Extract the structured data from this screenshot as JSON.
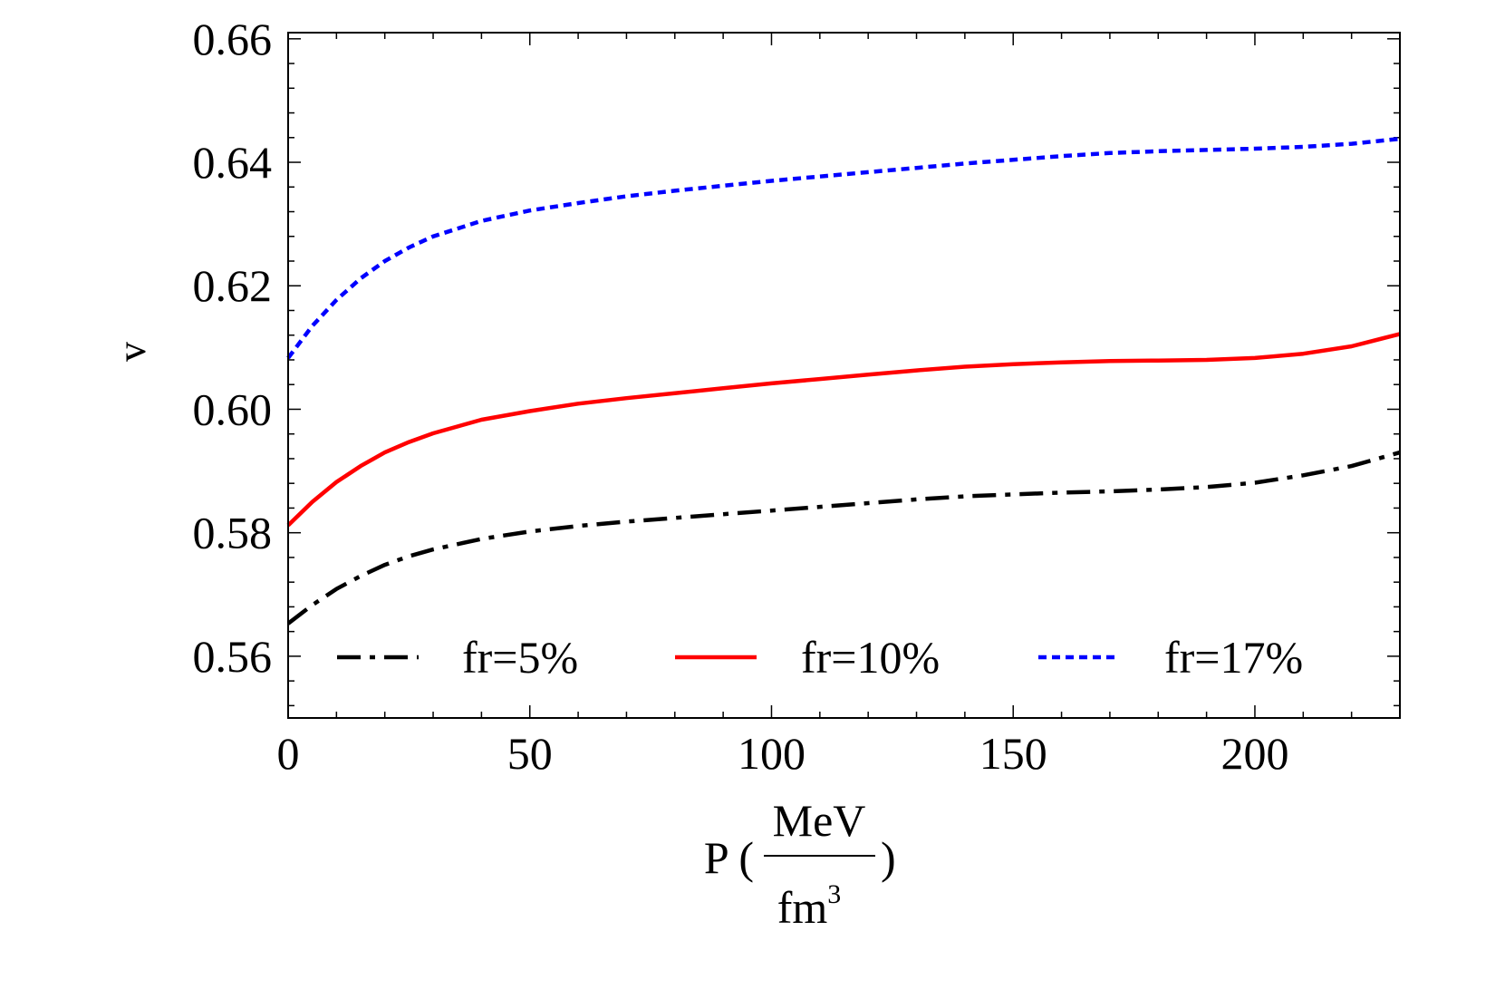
{
  "chart_data": {
    "type": "line",
    "xlim": [
      0,
      230
    ],
    "ylim": [
      0.55,
      0.661
    ],
    "xticks": [
      0,
      50,
      100,
      150,
      200
    ],
    "yticks": [
      0.56,
      0.58,
      0.6,
      0.62,
      0.64,
      0.66
    ],
    "xtick_labels": [
      "0",
      "50",
      "100",
      "150",
      "200"
    ],
    "ytick_labels": [
      "0.56",
      "0.58",
      "0.60",
      "0.62",
      "0.64",
      "0.66"
    ],
    "ylabel": "v",
    "xlabel": {
      "prefix": "P (",
      "numerator": "MeV",
      "denominator": "fm",
      "exponent": "3",
      "suffix": ")"
    },
    "legend_position": "bottom",
    "series": [
      {
        "name": "fr=5%",
        "color": "#000000",
        "style": "dashdot",
        "points": [
          [
            0,
            0.5653
          ],
          [
            5,
            0.5683
          ],
          [
            10,
            0.5709
          ],
          [
            15,
            0.573
          ],
          [
            20,
            0.5748
          ],
          [
            25,
            0.5762
          ],
          [
            30,
            0.5773
          ],
          [
            40,
            0.579
          ],
          [
            50,
            0.5802
          ],
          [
            60,
            0.5811
          ],
          [
            70,
            0.5818
          ],
          [
            80,
            0.5824
          ],
          [
            90,
            0.583
          ],
          [
            100,
            0.5836
          ],
          [
            110,
            0.5842
          ],
          [
            120,
            0.5848
          ],
          [
            130,
            0.5854
          ],
          [
            140,
            0.5859
          ],
          [
            150,
            0.5862
          ],
          [
            160,
            0.5865
          ],
          [
            170,
            0.5867
          ],
          [
            180,
            0.587
          ],
          [
            190,
            0.5874
          ],
          [
            200,
            0.5881
          ],
          [
            210,
            0.5893
          ],
          [
            220,
            0.5908
          ],
          [
            230,
            0.593
          ]
        ]
      },
      {
        "name": "fr=10%",
        "color": "#ff0000",
        "style": "solid",
        "points": [
          [
            0,
            0.5812
          ],
          [
            5,
            0.585
          ],
          [
            10,
            0.5882
          ],
          [
            15,
            0.5908
          ],
          [
            20,
            0.593
          ],
          [
            25,
            0.5947
          ],
          [
            30,
            0.5961
          ],
          [
            40,
            0.5983
          ],
          [
            50,
            0.5997
          ],
          [
            60,
            0.6009
          ],
          [
            70,
            0.6018
          ],
          [
            80,
            0.6026
          ],
          [
            90,
            0.6034
          ],
          [
            100,
            0.6042
          ],
          [
            110,
            0.6049
          ],
          [
            120,
            0.6056
          ],
          [
            130,
            0.6063
          ],
          [
            140,
            0.6069
          ],
          [
            150,
            0.6073
          ],
          [
            160,
            0.6076
          ],
          [
            170,
            0.6078
          ],
          [
            180,
            0.6079
          ],
          [
            190,
            0.608
          ],
          [
            200,
            0.6083
          ],
          [
            210,
            0.609
          ],
          [
            220,
            0.6102
          ],
          [
            230,
            0.6122
          ]
        ]
      },
      {
        "name": "fr=17%",
        "color": "#0000ff",
        "style": "dotted",
        "points": [
          [
            0,
            0.6083
          ],
          [
            5,
            0.6135
          ],
          [
            10,
            0.6177
          ],
          [
            15,
            0.6212
          ],
          [
            20,
            0.624
          ],
          [
            25,
            0.6262
          ],
          [
            30,
            0.628
          ],
          [
            40,
            0.6305
          ],
          [
            50,
            0.6322
          ],
          [
            60,
            0.6334
          ],
          [
            70,
            0.6345
          ],
          [
            80,
            0.6354
          ],
          [
            90,
            0.6362
          ],
          [
            100,
            0.637
          ],
          [
            110,
            0.6377
          ],
          [
            120,
            0.6384
          ],
          [
            130,
            0.6391
          ],
          [
            140,
            0.6398
          ],
          [
            150,
            0.6404
          ],
          [
            160,
            0.641
          ],
          [
            170,
            0.6415
          ],
          [
            180,
            0.6418
          ],
          [
            190,
            0.642
          ],
          [
            200,
            0.6422
          ],
          [
            210,
            0.6425
          ],
          [
            220,
            0.643
          ],
          [
            230,
            0.6438
          ]
        ]
      }
    ]
  }
}
